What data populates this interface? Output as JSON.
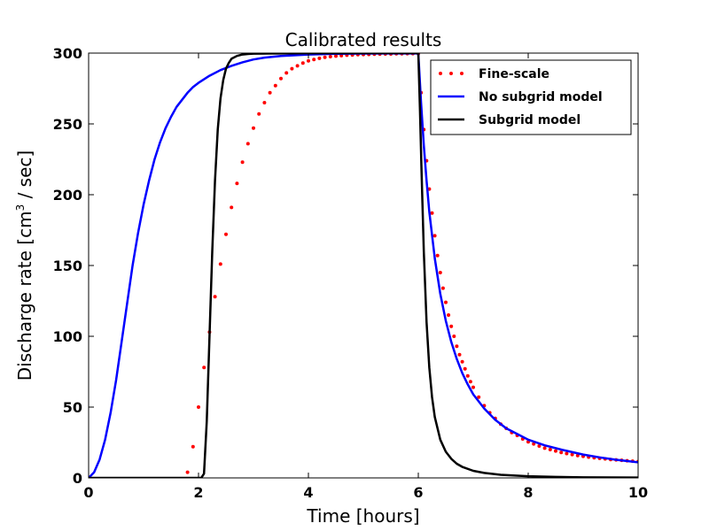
{
  "chart_data": {
    "type": "line",
    "title": "Calibrated results",
    "xlabel": "Time [hours]",
    "ylabel_prefix": "Discharge rate [cm",
    "ylabel_sup": "3",
    "ylabel_suffix": " / sec]",
    "xlim": [
      0,
      10
    ],
    "ylim": [
      0,
      300
    ],
    "xticks": [
      0,
      2,
      4,
      6,
      8,
      10
    ],
    "yticks": [
      0,
      50,
      100,
      150,
      200,
      250,
      300
    ],
    "xtick_labels": [
      "0",
      "2",
      "4",
      "6",
      "8",
      "10"
    ],
    "ytick_labels": [
      "0",
      "50",
      "100",
      "150",
      "200",
      "250",
      "300"
    ],
    "grid": false,
    "legend_position": "top-right",
    "series": [
      {
        "name": "Fine-scale",
        "style": "dots",
        "color": "#ff0000",
        "x": [
          1.8,
          1.9,
          2.0,
          2.1,
          2.2,
          2.3,
          2.4,
          2.5,
          2.6,
          2.7,
          2.8,
          2.9,
          3.0,
          3.1,
          3.2,
          3.3,
          3.4,
          3.5,
          3.6,
          3.7,
          3.8,
          3.9,
          4.0,
          4.1,
          4.2,
          4.3,
          4.4,
          4.5,
          4.6,
          4.7,
          4.8,
          4.9,
          5.0,
          5.1,
          5.2,
          5.3,
          5.4,
          5.5,
          5.6,
          5.7,
          5.8,
          5.9,
          6.0,
          6.05,
          6.1,
          6.15,
          6.2,
          6.25,
          6.3,
          6.35,
          6.4,
          6.45,
          6.5,
          6.55,
          6.6,
          6.65,
          6.7,
          6.75,
          6.8,
          6.85,
          6.9,
          6.95,
          7.0,
          7.1,
          7.2,
          7.3,
          7.4,
          7.5,
          7.6,
          7.7,
          7.8,
          7.9,
          8.0,
          8.1,
          8.2,
          8.3,
          8.4,
          8.5,
          8.6,
          8.7,
          8.8,
          8.9,
          9.0,
          9.1,
          9.2,
          9.3,
          9.4,
          9.5,
          9.6,
          9.7,
          9.8,
          9.9,
          10.0
        ],
        "y": [
          4,
          22,
          50,
          78,
          103,
          128,
          151,
          172,
          191,
          208,
          223,
          236,
          247,
          257,
          265,
          272,
          277,
          282,
          286,
          289,
          291,
          293,
          294.5,
          295.5,
          296.3,
          297,
          297.5,
          297.9,
          298.2,
          298.5,
          298.7,
          298.9,
          299,
          299.1,
          299.2,
          299.3,
          299.4,
          299.4,
          299.5,
          299.5,
          299.6,
          299.6,
          299.6,
          272,
          246,
          224,
          204,
          187,
          171,
          157,
          145,
          134,
          124,
          115,
          107,
          100,
          93,
          87,
          82,
          77,
          72,
          68,
          64,
          57,
          51,
          46,
          42,
          38,
          35,
          32,
          30,
          27.5,
          25.5,
          24,
          22.5,
          21,
          20,
          19,
          18,
          17.2,
          16.5,
          15.8,
          15.2,
          14.7,
          14.2,
          13.8,
          13.4,
          13,
          12.7,
          12.4,
          12.1,
          11.8,
          11.5
        ]
      },
      {
        "name": "No subgrid model",
        "style": "line",
        "color": "#0000ff",
        "x": [
          0,
          0.1,
          0.2,
          0.3,
          0.4,
          0.5,
          0.6,
          0.7,
          0.8,
          0.9,
          1.0,
          1.1,
          1.2,
          1.3,
          1.4,
          1.5,
          1.6,
          1.7,
          1.8,
          1.9,
          2.0,
          2.2,
          2.4,
          2.6,
          2.8,
          3.0,
          3.2,
          3.5,
          4.0,
          4.5,
          5.0,
          5.5,
          6.0,
          6.05,
          6.1,
          6.15,
          6.2,
          6.3,
          6.4,
          6.5,
          6.6,
          6.7,
          6.8,
          6.9,
          7.0,
          7.2,
          7.4,
          7.6,
          7.8,
          8.0,
          8.3,
          8.6,
          9.0,
          9.3,
          9.6,
          10.0
        ],
        "y": [
          0,
          4,
          13,
          27,
          46,
          69,
          96,
          123,
          150,
          173,
          193,
          210,
          225,
          237,
          247,
          255,
          262,
          267,
          272,
          276,
          279,
          284,
          288,
          291,
          293.5,
          295.5,
          296.8,
          298,
          299,
          299.5,
          299.7,
          299.8,
          299.8,
          265,
          235,
          210,
          188,
          155,
          130,
          111,
          96,
          84,
          74,
          66,
          59,
          49,
          41,
          35,
          31,
          27,
          23,
          20,
          16.5,
          14.5,
          12.8,
          11
        ]
      },
      {
        "name": "Subgrid model",
        "style": "line",
        "color": "#000000",
        "x": [
          0,
          2.0,
          2.05,
          2.1,
          2.15,
          2.2,
          2.25,
          2.3,
          2.35,
          2.4,
          2.45,
          2.5,
          2.55,
          2.6,
          2.7,
          2.8,
          2.9,
          3.0,
          3.5,
          4.0,
          5.0,
          6.0,
          6.03,
          6.06,
          6.1,
          6.15,
          6.2,
          6.25,
          6.3,
          6.4,
          6.5,
          6.6,
          6.7,
          6.8,
          7.0,
          7.2,
          7.5,
          8.0,
          8.5,
          9.0,
          10.0
        ],
        "y": [
          0,
          0,
          0,
          3,
          40,
          100,
          160,
          210,
          246,
          268,
          281,
          289,
          293,
          296,
          298,
          299,
          299.4,
          299.6,
          299.8,
          299.9,
          300,
          300,
          260,
          215,
          160,
          110,
          78,
          57,
          43,
          27,
          18.5,
          13.5,
          10,
          7.8,
          5,
          3.5,
          2.2,
          1.2,
          0.7,
          0.4,
          0.2
        ]
      }
    ]
  }
}
